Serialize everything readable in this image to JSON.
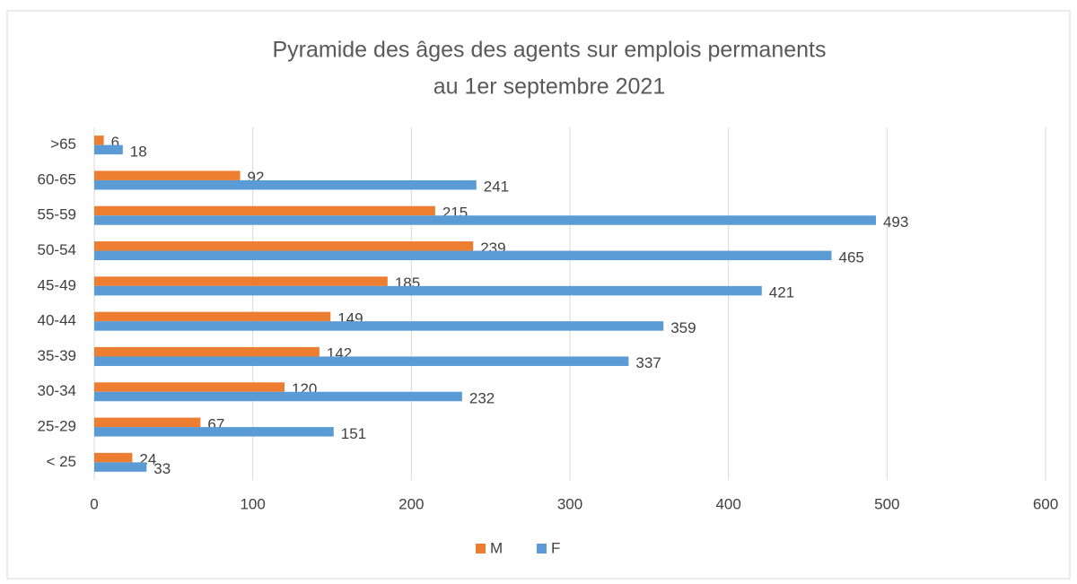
{
  "chart_data": {
    "type": "bar",
    "orientation": "horizontal",
    "title": [
      "Pyramide des âges des agents sur emplois permanents",
      "au 1er septembre 2021"
    ],
    "categories": [
      ">65",
      "60-65",
      "55-59",
      "50-54",
      "45-49",
      "40-44",
      "35-39",
      "30-34",
      "25-29",
      "< 25"
    ],
    "series": [
      {
        "name": "M",
        "color": "#ed7d31",
        "values": [
          6,
          92,
          215,
          239,
          185,
          149,
          142,
          120,
          67,
          24
        ]
      },
      {
        "name": "F",
        "color": "#5b9bd5",
        "values": [
          18,
          241,
          493,
          465,
          421,
          359,
          337,
          232,
          151,
          33
        ]
      }
    ],
    "xlim": [
      0,
      600
    ],
    "xticks": [
      0,
      100,
      200,
      300,
      400,
      500,
      600
    ],
    "grid": true,
    "legend": "bottom"
  }
}
